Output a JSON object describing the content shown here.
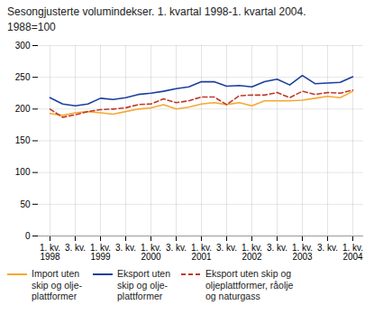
{
  "chart_data": {
    "type": "line",
    "title": "Sesongjusterte volumindekser. 1. kvartal 1998-1. kvartal 2004.",
    "subtitle": "1988=100",
    "categories": [
      "1. kv.\n1998",
      null,
      "3. kv.",
      null,
      "1. kv.\n1999",
      null,
      "3. kv.",
      null,
      "1. kv.\n2000",
      null,
      "3. kv.",
      null,
      "1. kv.\n2001",
      null,
      "3. kv.",
      null,
      "1. kv.\n2002",
      null,
      "3. kv.",
      null,
      "1. kv.\n2003",
      null,
      "3. kv.",
      null,
      "1. kv.\n2004"
    ],
    "series": [
      {
        "name": "Import uten\nskip og olje-\nplattformer",
        "color": "#f5a832",
        "line_style": "solid",
        "values": [
          193,
          190,
          194,
          196,
          194,
          192,
          196,
          200,
          202,
          207,
          200,
          203,
          208,
          210,
          207,
          210,
          205,
          213,
          213,
          213,
          214,
          217,
          220,
          218,
          228
        ]
      },
      {
        "name": "Eksport uten\nskip og olje-\nplattformer",
        "color": "#1a3f9e",
        "line_style": "solid",
        "values": [
          218,
          208,
          205,
          208,
          217,
          215,
          218,
          223,
          225,
          228,
          232,
          235,
          243,
          243,
          236,
          237,
          235,
          243,
          247,
          238,
          253,
          240,
          241,
          242,
          251
        ]
      },
      {
        "name": "Eksport uten skip og\noljeplattformer, råolje\nog naturgass",
        "color": "#c0392b",
        "line_style": "dashed",
        "values": [
          200,
          187,
          191,
          196,
          199,
          200,
          202,
          207,
          208,
          216,
          210,
          213,
          219,
          219,
          207,
          221,
          222,
          222,
          226,
          218,
          228,
          223,
          226,
          225,
          230
        ]
      }
    ],
    "ylim": [
      0,
      300
    ],
    "yticks": [
      0,
      50,
      100,
      150,
      200,
      250,
      300
    ],
    "grid": true,
    "legend": "bottom"
  }
}
